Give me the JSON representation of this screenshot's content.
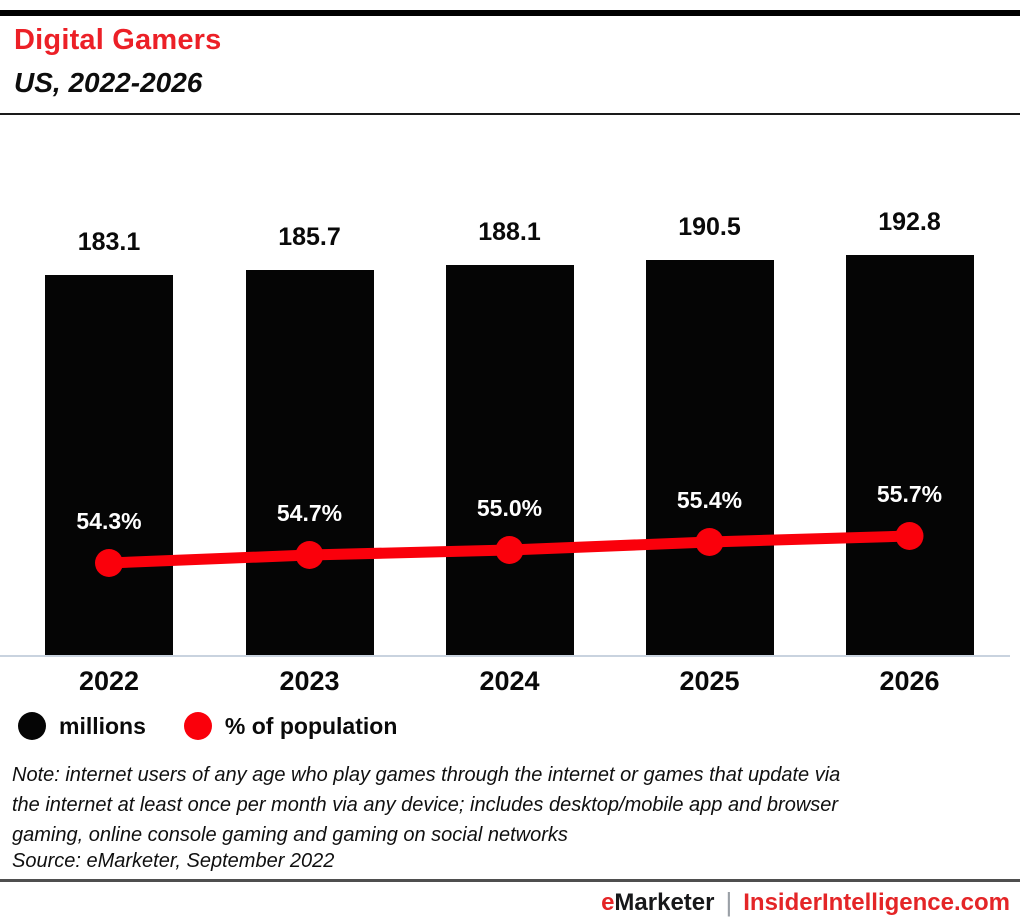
{
  "header": {
    "title": "Digital Gamers",
    "subtitle": "US, 2022-2026"
  },
  "chart_data": {
    "type": "bar",
    "title": "Digital Gamers",
    "subtitle": "US, 2022-2026",
    "categories": [
      "2022",
      "2023",
      "2024",
      "2025",
      "2026"
    ],
    "series": [
      {
        "name": "millions",
        "type": "bar",
        "color": "#050505",
        "values": [
          183.1,
          185.7,
          188.1,
          190.5,
          192.8
        ],
        "labels": [
          "183.1",
          "185.7",
          "188.1",
          "190.5",
          "192.8"
        ]
      },
      {
        "name": "% of population",
        "type": "line",
        "color": "#FA000B",
        "values": [
          54.3,
          54.7,
          55.0,
          55.4,
          55.7
        ],
        "labels": [
          "54.3%",
          "54.7%",
          "55.0%",
          "55.4%",
          "55.7%"
        ]
      }
    ],
    "ylim": [
      0,
      200
    ],
    "grid": false,
    "legend_position": "bottom-left"
  },
  "legend": {
    "millions": "millions",
    "percent": "% of population"
  },
  "note": {
    "line1": "Note: internet users of any age who play games through the internet or games that update via",
    "line2": "the internet at least once per month via any device; includes desktop/mobile app and browser",
    "line3": "gaming, online console gaming and gaming on social networks",
    "source": "Source: eMarketer, September 2022"
  },
  "footer": {
    "brand_e": "e",
    "brand_rest": "Marketer",
    "separator": "|",
    "site": "InsiderIntelligence.com"
  },
  "colors": {
    "accent_red": "#EC2027",
    "line_red": "#FA000B",
    "bar_black": "#050505",
    "axis_gray": "#C9D3DF",
    "footer_red": "#E42527",
    "top_bar_black": "#000000"
  }
}
